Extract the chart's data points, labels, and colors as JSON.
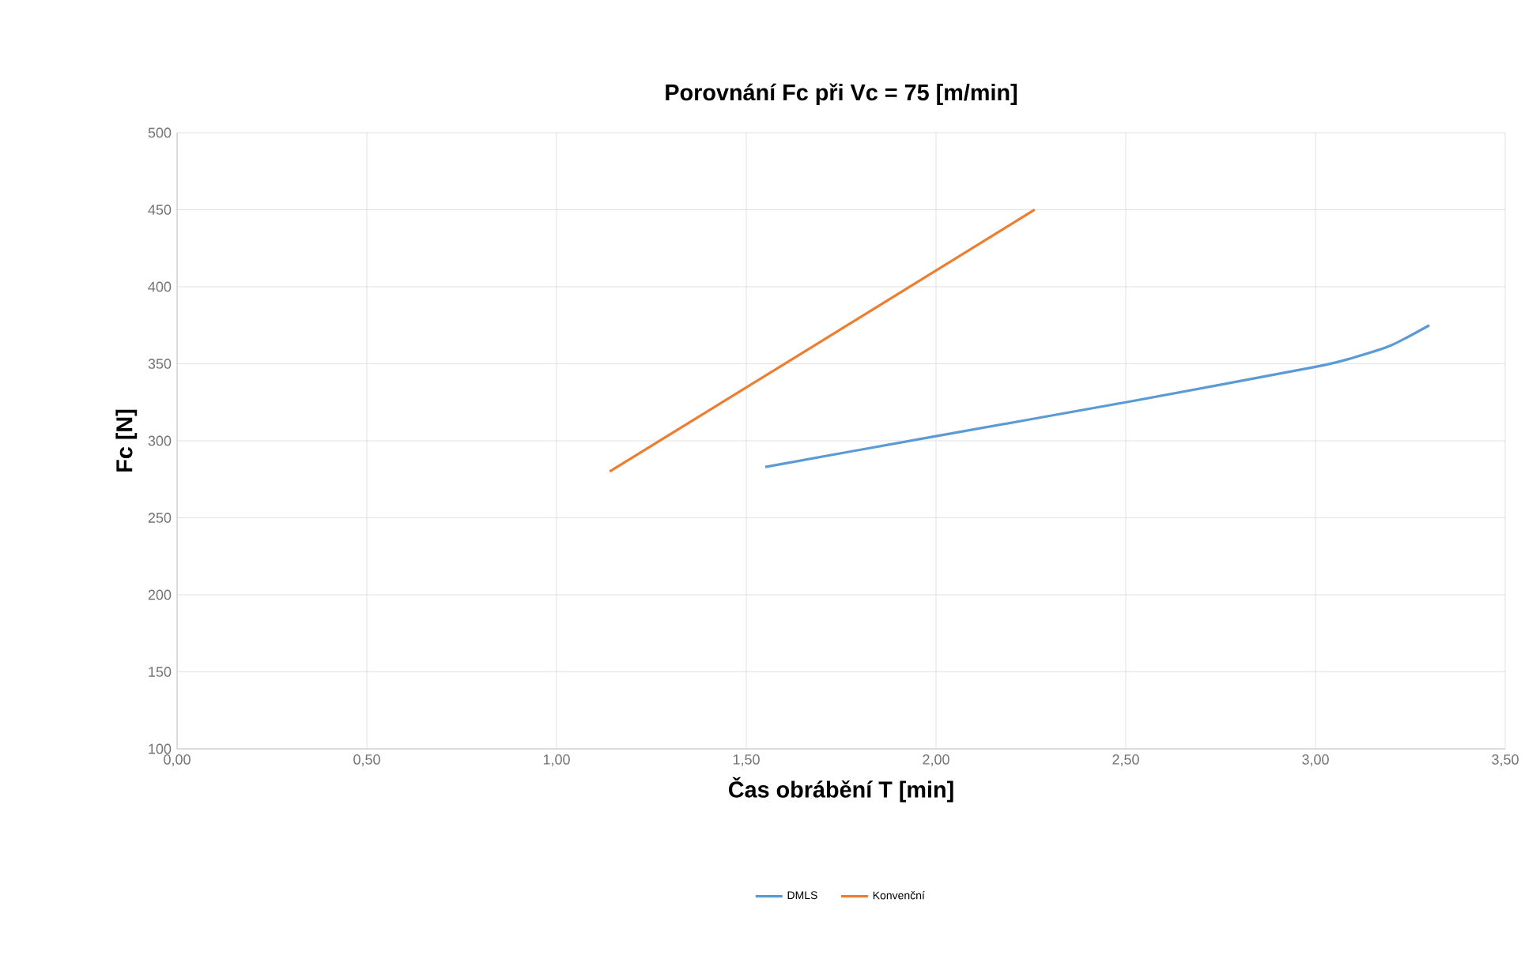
{
  "chart_data": {
    "type": "line",
    "title": "Porovnání Fc  při Vc = 75 [m/min]",
    "xlabel": "Čas obrábění T [min]",
    "ylabel": "Fc  [N]",
    "xlim": [
      0,
      3.5
    ],
    "xticks": [
      {
        "value": 0,
        "label": "0,00"
      },
      {
        "value": 0.5,
        "label": "0,50"
      },
      {
        "value": 1,
        "label": "1,00"
      },
      {
        "value": 1.5,
        "label": "1,50"
      },
      {
        "value": 2,
        "label": "2,00"
      },
      {
        "value": 2.5,
        "label": "2,50"
      },
      {
        "value": 3,
        "label": "3,00"
      },
      {
        "value": 3.5,
        "label": "3,50"
      }
    ],
    "ylim": [
      100,
      500
    ],
    "yticks": [
      100,
      150,
      200,
      250,
      300,
      350,
      400,
      450,
      500
    ],
    "grid": true,
    "legend": "bottom",
    "marker": "none",
    "line_style": "solid",
    "series": [
      {
        "name": "DMLS",
        "color": "#5b9bd5",
        "x": [
          1.55,
          2.0,
          2.5,
          3.0,
          3.1,
          3.2,
          3.3
        ],
        "values": [
          283,
          303,
          325,
          348,
          354,
          362,
          375
        ]
      },
      {
        "name": "Konvenční",
        "color": "#ed7d31",
        "x": [
          1.14,
          2.26
        ],
        "values": [
          280,
          450
        ]
      }
    ]
  }
}
